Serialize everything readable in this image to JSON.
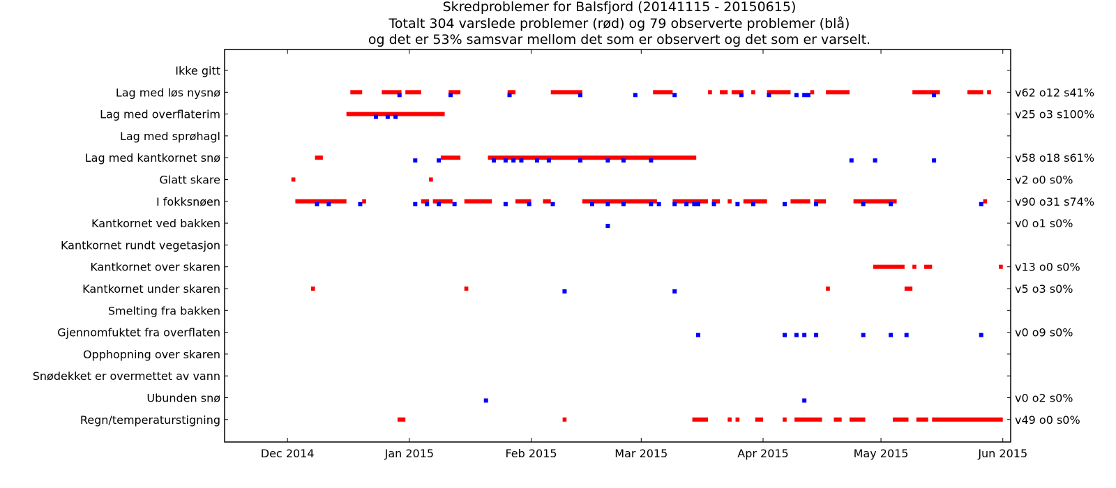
{
  "chart_data": {
    "type": "scatter",
    "title": [
      "Skredproblemer for Balsfjord (20141115 - 20150615)",
      "Totalt 304 varslede problemer (rød) og 79 observerte problemer (blå)",
      "og det er 53% samsvar mellom det som er observert og det som er varselt."
    ],
    "xlim": [
      "2014-11-15",
      "2015-06-03"
    ],
    "x_ticks": [
      {
        "date": "2014-12-01",
        "label": "Dec 2014"
      },
      {
        "date": "2015-01-01",
        "label": "Jan 2015"
      },
      {
        "date": "2015-02-01",
        "label": "Feb 2015"
      },
      {
        "date": "2015-03-01",
        "label": "Mar 2015"
      },
      {
        "date": "2015-04-01",
        "label": "Apr 2015"
      },
      {
        "date": "2015-05-01",
        "label": "May 2015"
      },
      {
        "date": "2015-06-01",
        "label": "Jun 2015"
      }
    ],
    "series_colors": {
      "varslet": "#ff0000",
      "observert": "#0000ff"
    },
    "categories": [
      {
        "label": "Ikke gitt",
        "stat": "",
        "varslet": [],
        "observert": []
      },
      {
        "label": "Lag med løs nysnø",
        "stat": "v62 o12 s41%",
        "varslet": [
          [
            "2014-12-17",
            "2014-12-19"
          ],
          [
            "2014-12-25",
            "2014-12-29"
          ],
          [
            "2014-12-31",
            "2015-01-03"
          ],
          [
            "2015-01-11",
            "2015-01-13"
          ],
          [
            "2015-01-26",
            "2015-01-27"
          ],
          [
            "2015-02-06",
            "2015-02-13"
          ],
          [
            "2015-03-04",
            "2015-03-08"
          ],
          [
            "2015-03-18",
            "2015-03-18"
          ],
          [
            "2015-03-21",
            "2015-03-22"
          ],
          [
            "2015-03-24",
            "2015-03-26"
          ],
          [
            "2015-03-29",
            "2015-03-29"
          ],
          [
            "2015-04-02",
            "2015-04-07"
          ],
          [
            "2015-04-13",
            "2015-04-13"
          ],
          [
            "2015-04-17",
            "2015-04-22"
          ],
          [
            "2015-05-09",
            "2015-05-12"
          ],
          [
            "2015-05-13",
            "2015-05-15"
          ],
          [
            "2015-05-23",
            "2015-05-26"
          ],
          [
            "2015-05-28",
            "2015-05-28"
          ]
        ],
        "observert": [
          "2014-12-29",
          "2015-01-11",
          "2015-01-26",
          "2015-02-13",
          "2015-02-27",
          "2015-03-09",
          "2015-03-26",
          "2015-04-02",
          "2015-04-09",
          "2015-04-11",
          "2015-04-12",
          "2015-05-14"
        ]
      },
      {
        "label": "Lag med overflaterim",
        "stat": "v25 o3 s100%",
        "varslet": [
          [
            "2014-12-16",
            "2015-01-09"
          ]
        ],
        "observert": [
          "2014-12-23",
          "2014-12-26",
          "2014-12-28"
        ]
      },
      {
        "label": "Lag med sprøhagl",
        "stat": "",
        "varslet": [],
        "observert": []
      },
      {
        "label": "Lag med kantkornet snø",
        "stat": "v58 o18 s61%",
        "varslet": [
          [
            "2014-12-08",
            "2014-12-09"
          ],
          [
            "2015-01-09",
            "2015-01-13"
          ],
          [
            "2015-01-21",
            "2015-02-07"
          ],
          [
            "2015-02-08",
            "2015-03-14"
          ]
        ],
        "observert": [
          "2015-01-02",
          "2015-01-08",
          "2015-01-22",
          "2015-01-25",
          "2015-01-27",
          "2015-01-29",
          "2015-02-02",
          "2015-02-05",
          "2015-02-13",
          "2015-02-20",
          "2015-02-24",
          "2015-03-03",
          "2015-04-23",
          "2015-04-29",
          "2015-05-14"
        ]
      },
      {
        "label": "Glatt skare",
        "stat": "v2 o0 s0%",
        "varslet": [
          [
            "2014-12-02",
            "2014-12-02"
          ],
          [
            "2015-01-06",
            "2015-01-06"
          ]
        ],
        "observert": []
      },
      {
        "label": "I fokksnøen",
        "stat": "v90 o31 s74%",
        "varslet": [
          [
            "2014-12-03",
            "2014-12-15"
          ],
          [
            "2014-12-20",
            "2014-12-20"
          ],
          [
            "2015-01-04",
            "2015-01-05"
          ],
          [
            "2015-01-07",
            "2015-01-11"
          ],
          [
            "2015-01-15",
            "2015-01-21"
          ],
          [
            "2015-01-28",
            "2015-01-31"
          ],
          [
            "2015-02-04",
            "2015-02-05"
          ],
          [
            "2015-02-14",
            "2015-03-04"
          ],
          [
            "2015-03-09",
            "2015-03-17"
          ],
          [
            "2015-03-19",
            "2015-03-20"
          ],
          [
            "2015-03-23",
            "2015-03-23"
          ],
          [
            "2015-03-27",
            "2015-04-01"
          ],
          [
            "2015-04-08",
            "2015-04-12"
          ],
          [
            "2015-04-14",
            "2015-04-16"
          ],
          [
            "2015-04-24",
            "2015-05-04"
          ],
          [
            "2015-05-27",
            "2015-05-27"
          ]
        ],
        "observert": [
          "2014-12-08",
          "2014-12-11",
          "2014-12-19",
          "2015-01-02",
          "2015-01-05",
          "2015-01-08",
          "2015-01-12",
          "2015-01-25",
          "2015-01-31",
          "2015-02-06",
          "2015-02-16",
          "2015-02-20",
          "2015-02-24",
          "2015-03-03",
          "2015-03-05",
          "2015-03-09",
          "2015-03-12",
          "2015-03-14",
          "2015-03-15",
          "2015-03-19",
          "2015-03-25",
          "2015-03-29",
          "2015-04-06",
          "2015-04-14",
          "2015-04-26",
          "2015-05-03",
          "2015-05-26"
        ]
      },
      {
        "label": "Kantkornet ved bakken",
        "stat": "v0 o1 s0%",
        "varslet": [],
        "observert": [
          "2015-02-20"
        ]
      },
      {
        "label": "Kantkornet rundt vegetasjon",
        "stat": "",
        "varslet": [],
        "observert": []
      },
      {
        "label": "Kantkornet over skaren",
        "stat": "v13 o0 s0%",
        "varslet": [
          [
            "2015-04-29",
            "2015-05-06"
          ],
          [
            "2015-05-09",
            "2015-05-09"
          ],
          [
            "2015-05-12",
            "2015-05-13"
          ],
          [
            "2015-05-31",
            "2015-05-31"
          ]
        ],
        "observert": []
      },
      {
        "label": "Kantkornet under skaren",
        "stat": "v5 o3 s0%",
        "varslet": [
          [
            "2014-12-07",
            "2014-12-07"
          ],
          [
            "2015-01-15",
            "2015-01-15"
          ],
          [
            "2015-04-17",
            "2015-04-17"
          ],
          [
            "2015-05-07",
            "2015-05-08"
          ]
        ],
        "observert": [
          "2015-02-09",
          "2015-03-09"
        ]
      },
      {
        "label": "Smelting fra bakken",
        "stat": "",
        "varslet": [],
        "observert": []
      },
      {
        "label": "Gjennomfuktet fra overflaten",
        "stat": "v0 o9 s0%",
        "varslet": [],
        "observert": [
          "2015-03-15",
          "2015-04-06",
          "2015-04-09",
          "2015-04-11",
          "2015-04-14",
          "2015-04-26",
          "2015-05-03",
          "2015-05-07",
          "2015-05-26"
        ]
      },
      {
        "label": "Opphopning over skaren",
        "stat": "",
        "varslet": [],
        "observert": []
      },
      {
        "label": "Snødekket er overmettet av vann",
        "stat": "",
        "varslet": [],
        "observert": []
      },
      {
        "label": "Ubunden snø",
        "stat": "v0 o2 s0%",
        "varslet": [],
        "observert": [
          "2015-01-20",
          "2015-04-11"
        ]
      },
      {
        "label": "Regn/temperaturstigning",
        "stat": "v49 o0 s0%",
        "varslet": [
          [
            "2014-12-29",
            "2014-12-30"
          ],
          [
            "2015-02-09",
            "2015-02-09"
          ],
          [
            "2015-03-14",
            "2015-03-17"
          ],
          [
            "2015-03-23",
            "2015-03-23"
          ],
          [
            "2015-03-25",
            "2015-03-25"
          ],
          [
            "2015-03-30",
            "2015-03-31"
          ],
          [
            "2015-04-06",
            "2015-04-06"
          ],
          [
            "2015-04-09",
            "2015-04-15"
          ],
          [
            "2015-04-19",
            "2015-04-20"
          ],
          [
            "2015-04-23",
            "2015-04-26"
          ],
          [
            "2015-05-04",
            "2015-05-07"
          ],
          [
            "2015-05-10",
            "2015-05-12"
          ],
          [
            "2015-05-14",
            "2015-05-31"
          ]
        ],
        "observert": []
      }
    ]
  }
}
